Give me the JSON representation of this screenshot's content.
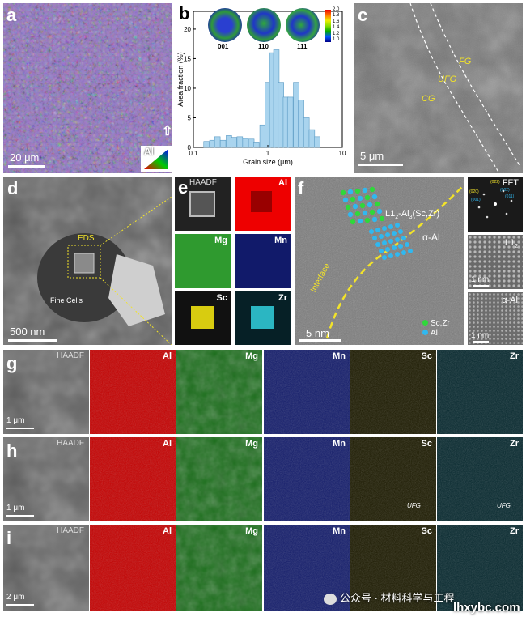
{
  "panels": {
    "a": {
      "letter": "a",
      "scale": "20 μm",
      "ipf_label": "Al"
    },
    "b": {
      "letter": "b",
      "pole_labels": [
        "001",
        "110",
        "111"
      ],
      "colorbar_ticks": [
        "2.0",
        "1.8",
        "1.6",
        "1.4",
        "1.2",
        "1.0"
      ]
    },
    "c": {
      "letter": "c",
      "scale": "5 μm",
      "labels": {
        "fg": "FG",
        "ufg": "UFG",
        "cg": "CG"
      }
    },
    "d": {
      "letter": "d",
      "scale": "500 nm",
      "eds": "EDS",
      "fine_cells": "Fine Cells"
    },
    "e": {
      "letter": "e",
      "maps": [
        "HAADF",
        "Al",
        "Mg",
        "Mn",
        "Sc",
        "Zr"
      ]
    },
    "f": {
      "letter": "f",
      "phase_top_main": "L1",
      "phase_top_sub": "2",
      "phase_top_rest": "-Al",
      "phase_top_sub2": "3",
      "phase_top_end": "(Sc,Zr)",
      "phase_alpha": "α-Al",
      "interface": "Interface",
      "legend_sczr": "Sc,Zr",
      "legend_al": "Al",
      "scale": "5 nm",
      "fft": "FFT",
      "fft_spots": [
        "(022)",
        "(020)",
        "(002)",
        "(011)",
        "(001)"
      ],
      "l12_main": "L1",
      "l12_sub": "2",
      "alpha_inset": "α-Al",
      "inset_scale": "1 nm"
    },
    "g": {
      "letter": "g",
      "maps": [
        "HAADF",
        "Al",
        "Mg",
        "Mn",
        "Sc",
        "Zr"
      ],
      "scale": "1 μm"
    },
    "h": {
      "letter": "h",
      "maps": [
        "HAADF",
        "Al",
        "Mg",
        "Mn",
        "Sc",
        "Zr"
      ],
      "scale": "1 μm",
      "ufg": "UFG"
    },
    "i": {
      "letter": "i",
      "maps": [
        "HAADF",
        "Al",
        "Mg",
        "Mn",
        "Sc",
        "Zr"
      ],
      "scale": "2 μm"
    }
  },
  "watermark": {
    "text": "公众号 · 材料科学与工程",
    "site": "lhxybc.com"
  },
  "colors": {
    "al": "#d40000",
    "mg": "#1d8a1d",
    "mn": "#18207a",
    "sc": "#3a3400",
    "zr": "#07323a",
    "yellow": "#f2e32a"
  },
  "chart_data": {
    "type": "bar",
    "xlabel": "Grain size (μm)",
    "ylabel": "Area fraction (%)",
    "xscale": "log",
    "xlim": [
      0.1,
      10
    ],
    "ylim": [
      0,
      23
    ],
    "xticks": [
      "0.1",
      "1",
      "10"
    ],
    "yticks": [
      "0",
      "5",
      "10",
      "15",
      "20"
    ],
    "x": [
      0.15,
      0.18,
      0.21,
      0.25,
      0.3,
      0.35,
      0.42,
      0.5,
      0.6,
      0.7,
      0.85,
      1.0,
      1.15,
      1.3,
      1.5,
      1.75,
      2.0,
      2.4,
      2.8,
      3.3,
      3.9,
      4.6
    ],
    "values": [
      1.0,
      1.2,
      1.8,
      1.2,
      2.0,
      1.7,
      1.8,
      1.5,
      1.4,
      0.9,
      3.8,
      11.0,
      16.0,
      16.5,
      11.0,
      8.5,
      8.5,
      11.0,
      8.0,
      5.0,
      3.0,
      1.8
    ]
  }
}
